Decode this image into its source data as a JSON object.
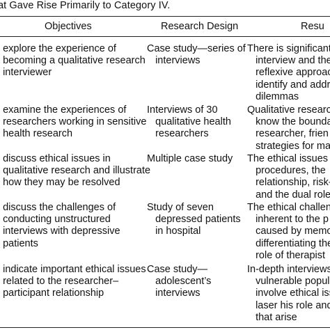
{
  "caption": "at Gave Rise Primarily to Category IV.",
  "headers": {
    "objectives": "Objectives",
    "design": "Research Design",
    "results": "Resu"
  },
  "rows": [
    {
      "objectives": "o explore the experience of\n   becoming a qualitative research\n   interviewer",
      "design": "Case study—series of\n   interviews",
      "results": "There is significant c\n   interview and the\n   reflexive approac\n   identify and addr\n   dilemmas"
    },
    {
      "objectives": "o examine the experiences of\n   researchers working in sensitive\n   health research",
      "design": "Interviews of 30\n   qualitative health\n   researchers",
      "results": "Qualitative research\n   know the bounda\n   researcher, frien\n   strategies for ma"
    },
    {
      "objectives": "o discuss ethical issues in\n   qualitative research and illustrate\n   how they may be resolved",
      "design": "Multiple case study",
      "results": "The ethical issues c\n   procedures, the\n   relationship, risk-\n   and the dual role"
    },
    {
      "objectives": "o discuss the challenges of\n   conducting unstructured\n   interviews with depressive\n   patients",
      "design": "Study of seven\n   depressed patients\n   in hospital",
      "results": "The ethical challeng\n   inherent to the p\n   caused by memo\n   differentiating the\n   role of therapist"
    },
    {
      "objectives": "o indicate important ethical issues\n   related to the researcher–\n   participant relationship",
      "design": "Case study—\n   adolescent’s\n   interviews",
      "results": "In-depth interviews\n   vulnerable popul\n   involve ethical iss\n   laser his role and\n   that arise"
    }
  ]
}
